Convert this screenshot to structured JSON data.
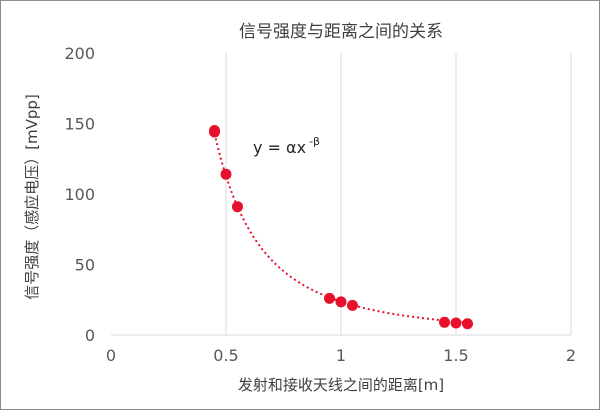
{
  "chart_data": {
    "type": "scatter",
    "title": "信号强度与距离之间的关系",
    "xlabel": "发射和接收天线之间的距离[m]",
    "ylabel": "信号强度（感应电压）[mVpp]",
    "xlim": [
      0,
      2
    ],
    "ylim": [
      0,
      200
    ],
    "xticks": [
      "0",
      "0.5",
      "1",
      "1.5",
      "2"
    ],
    "yticks": [
      "0",
      "50",
      "100",
      "150",
      "200"
    ],
    "grid": "vertical",
    "marker_color": "#e8112d",
    "fit_color": "#e8112d",
    "annotation": {
      "base": "y = αx",
      "exponent": "-β"
    },
    "series": [
      {
        "x": [
          0.45,
          0.45,
          0.5,
          0.55,
          0.95,
          1.0,
          1.05,
          1.45,
          1.5,
          1.55
        ],
        "y": [
          145,
          144,
          114,
          91,
          26,
          23.5,
          21,
          9,
          8.5,
          8
        ]
      }
    ],
    "fit": {
      "type": "power",
      "alpha": 23.7,
      "beta": 2.25,
      "x_range": [
        0.45,
        1.55
      ]
    }
  }
}
